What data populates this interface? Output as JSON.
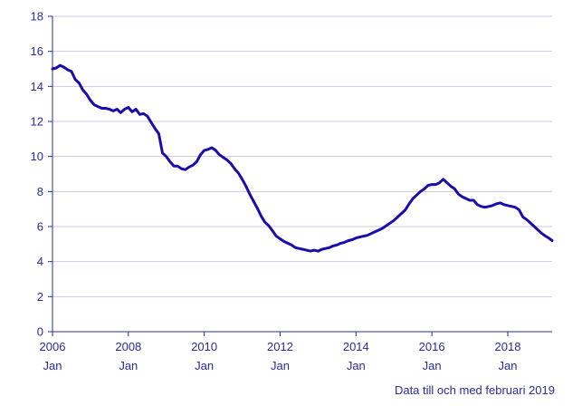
{
  "note": "Data till och med februari 2019",
  "chart_data": {
    "type": "line",
    "title": "",
    "xlabel": "",
    "ylabel": "",
    "ylim": [
      0,
      18
    ],
    "xlim": [
      2006.0,
      2019.17
    ],
    "grid": "horizontal",
    "line_color": "#1a0dab",
    "grid_color": "#c9c9e6",
    "axis_color": "#2b2b9c",
    "y_ticks": [
      0,
      2,
      4,
      6,
      8,
      10,
      12,
      14,
      16,
      18
    ],
    "x_ticks": [
      {
        "year": "2006",
        "month": "Jan"
      },
      {
        "year": "2008",
        "month": "Jan"
      },
      {
        "year": "2010",
        "month": "Jan"
      },
      {
        "year": "2012",
        "month": "Jan"
      },
      {
        "year": "2014",
        "month": "Jan"
      },
      {
        "year": "2016",
        "month": "Jan"
      },
      {
        "year": "2018",
        "month": "Jan"
      }
    ],
    "series": [
      {
        "x": [
          2006.0,
          2006.1,
          2006.2,
          2006.3,
          2006.4,
          2006.5,
          2006.6,
          2006.7,
          2006.8,
          2006.9,
          2007.0,
          2007.1,
          2007.2,
          2007.3,
          2007.4,
          2007.5,
          2007.6,
          2007.7,
          2007.8,
          2007.9,
          2008.0,
          2008.1,
          2008.2,
          2008.3,
          2008.4,
          2008.5,
          2008.6,
          2008.7,
          2008.8,
          2008.9,
          2009.0,
          2009.1,
          2009.2,
          2009.3,
          2009.4,
          2009.5,
          2009.6,
          2009.7,
          2009.8,
          2009.9,
          2010.0,
          2010.1,
          2010.2,
          2010.3,
          2010.4,
          2010.5,
          2010.6,
          2010.7,
          2010.8,
          2010.9,
          2011.0,
          2011.1,
          2011.2,
          2011.3,
          2011.4,
          2011.5,
          2011.6,
          2011.7,
          2011.8,
          2011.9,
          2012.0,
          2012.1,
          2012.2,
          2012.3,
          2012.4,
          2012.5,
          2012.6,
          2012.7,
          2012.8,
          2012.9,
          2013.0,
          2013.1,
          2013.2,
          2013.3,
          2013.4,
          2013.5,
          2013.6,
          2013.7,
          2013.8,
          2013.9,
          2014.0,
          2014.1,
          2014.2,
          2014.3,
          2014.4,
          2014.5,
          2014.6,
          2014.7,
          2014.8,
          2014.9,
          2015.0,
          2015.1,
          2015.2,
          2015.3,
          2015.4,
          2015.5,
          2015.6,
          2015.7,
          2015.8,
          2015.9,
          2016.0,
          2016.1,
          2016.2,
          2016.3,
          2016.4,
          2016.5,
          2016.6,
          2016.7,
          2016.8,
          2016.9,
          2017.0,
          2017.1,
          2017.2,
          2017.3,
          2017.4,
          2017.5,
          2017.6,
          2017.7,
          2017.8,
          2017.9,
          2018.0,
          2018.1,
          2018.2,
          2018.3,
          2018.4,
          2018.5,
          2018.6,
          2018.7,
          2018.8,
          2018.9,
          2019.0,
          2019.08,
          2019.17
        ],
        "values": [
          15.0,
          15.05,
          15.2,
          15.1,
          14.95,
          14.85,
          14.4,
          14.2,
          13.8,
          13.55,
          13.2,
          12.95,
          12.85,
          12.75,
          12.75,
          12.7,
          12.6,
          12.7,
          12.5,
          12.7,
          12.8,
          12.55,
          12.7,
          12.4,
          12.45,
          12.3,
          11.95,
          11.6,
          11.3,
          10.2,
          10.0,
          9.7,
          9.45,
          9.45,
          9.3,
          9.25,
          9.4,
          9.5,
          9.7,
          10.1,
          10.35,
          10.4,
          10.5,
          10.35,
          10.1,
          9.95,
          9.8,
          9.6,
          9.3,
          9.05,
          8.7,
          8.3,
          7.85,
          7.45,
          7.05,
          6.6,
          6.25,
          6.05,
          5.75,
          5.45,
          5.3,
          5.15,
          5.05,
          4.95,
          4.8,
          4.75,
          4.7,
          4.65,
          4.6,
          4.65,
          4.6,
          4.7,
          4.75,
          4.8,
          4.9,
          4.95,
          5.05,
          5.1,
          5.2,
          5.25,
          5.35,
          5.4,
          5.45,
          5.5,
          5.6,
          5.7,
          5.8,
          5.9,
          6.05,
          6.2,
          6.35,
          6.55,
          6.75,
          6.95,
          7.3,
          7.6,
          7.8,
          8.0,
          8.15,
          8.35,
          8.4,
          8.4,
          8.5,
          8.7,
          8.5,
          8.3,
          8.15,
          7.85,
          7.7,
          7.6,
          7.5,
          7.5,
          7.25,
          7.15,
          7.1,
          7.15,
          7.2,
          7.3,
          7.35,
          7.25,
          7.2,
          7.15,
          7.1,
          6.95,
          6.55,
          6.4,
          6.2,
          6.0,
          5.8,
          5.6,
          5.45,
          5.35,
          5.2
        ]
      }
    ]
  }
}
